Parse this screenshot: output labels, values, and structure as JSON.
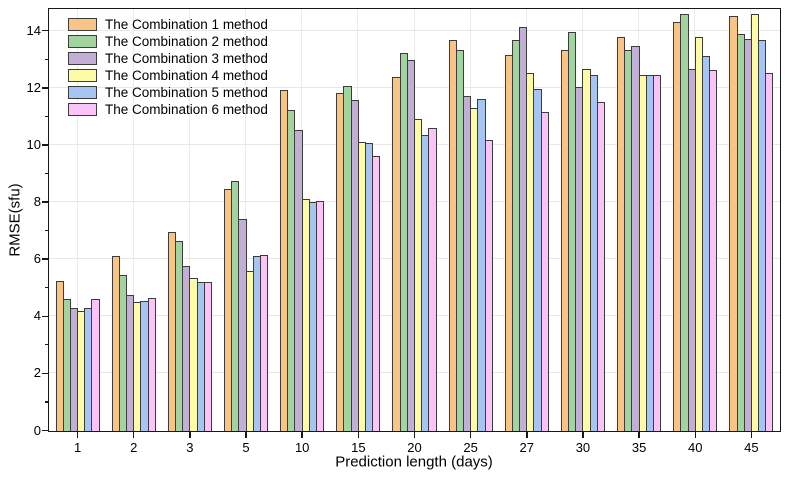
{
  "chart_data": {
    "type": "bar",
    "title": "",
    "xlabel": "Prediction length (days)",
    "ylabel": "RMSE(sfu)",
    "categories": [
      "1",
      "2",
      "3",
      "5",
      "10",
      "15",
      "20",
      "25",
      "27",
      "30",
      "35",
      "40",
      "45"
    ],
    "series": [
      {
        "name": "The Combination 1 method",
        "color": "#FAC487",
        "values": [
          5.25,
          6.1,
          6.95,
          8.45,
          11.9,
          11.8,
          12.35,
          13.65,
          13.15,
          13.3,
          13.75,
          14.3,
          14.5
        ]
      },
      {
        "name": "The Combination 2 method",
        "color": "#A2D4A0",
        "values": [
          4.6,
          5.45,
          6.65,
          8.75,
          11.2,
          12.05,
          13.2,
          13.3,
          13.65,
          13.95,
          13.3,
          14.55,
          13.85
        ]
      },
      {
        "name": "The Combination 3 method",
        "color": "#C1AFD5",
        "values": [
          4.3,
          4.75,
          5.75,
          7.4,
          10.5,
          11.55,
          12.95,
          11.7,
          14.1,
          12.0,
          13.45,
          12.65,
          13.7
        ]
      },
      {
        "name": "The Combination 4 method",
        "color": "#FDFBA6",
        "values": [
          4.2,
          4.5,
          5.35,
          5.6,
          8.1,
          10.1,
          10.9,
          11.3,
          12.5,
          12.65,
          12.45,
          13.75,
          14.55
        ]
      },
      {
        "name": "The Combination 5 method",
        "color": "#A6C5F3",
        "values": [
          4.3,
          4.55,
          5.2,
          6.1,
          8.0,
          10.05,
          10.35,
          11.6,
          11.95,
          12.45,
          12.45,
          13.1,
          13.65
        ]
      },
      {
        "name": "The Combination 6 method",
        "color": "#FBC4F8",
        "values": [
          4.6,
          4.65,
          5.2,
          6.15,
          8.05,
          9.6,
          10.6,
          10.15,
          11.15,
          11.5,
          12.45,
          12.6,
          12.5
        ]
      }
    ],
    "ylim": [
      0,
      14.74
    ],
    "yticks_major": [
      0,
      2,
      4,
      6,
      8,
      10,
      12,
      14
    ],
    "yticks_minor": [
      1,
      3,
      5,
      7,
      9,
      11,
      13
    ],
    "grid": true,
    "legend_position": "top-left-inside"
  }
}
